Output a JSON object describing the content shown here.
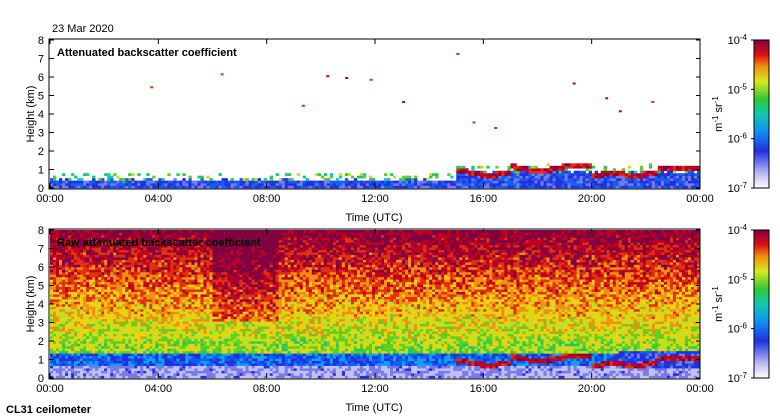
{
  "date": "23 Mar 2020",
  "instrument": "CL31 ceilometer",
  "chart_data": [
    {
      "type": "heatmap",
      "title": "Attenuated backscatter coefficient",
      "xlabel": "Time (UTC)",
      "ylabel": "Height (km)",
      "x_ticks": [
        "00:00",
        "04:00",
        "08:00",
        "12:00",
        "16:00",
        "20:00",
        "00:00"
      ],
      "y_ticks": [
        "0",
        "1",
        "2",
        "3",
        "4",
        "5",
        "6",
        "7",
        "8"
      ],
      "ylim": [
        0,
        8
      ],
      "xlim_hours": [
        0,
        24
      ],
      "colorbar": {
        "label": "m-1 sr-1",
        "scale": "log",
        "ticks": [
          "10-7",
          "10-6",
          "10-5",
          "10-4"
        ]
      }
    },
    {
      "type": "heatmap",
      "title": "Raw attenuated backscatter coefficient",
      "xlabel": "Time (UTC)",
      "ylabel": "Height (km)",
      "x_ticks": [
        "00:00",
        "04:00",
        "08:00",
        "12:00",
        "16:00",
        "20:00",
        "00:00"
      ],
      "y_ticks": [
        "0",
        "1",
        "2",
        "3",
        "4",
        "5",
        "6",
        "7",
        "8"
      ],
      "ylim": [
        0,
        8
      ],
      "xlim_hours": [
        0,
        24
      ],
      "colorbar": {
        "label": "m-1 sr-1",
        "scale": "log",
        "ticks": [
          "10-7",
          "10-6",
          "10-5",
          "10-4"
        ]
      }
    }
  ]
}
